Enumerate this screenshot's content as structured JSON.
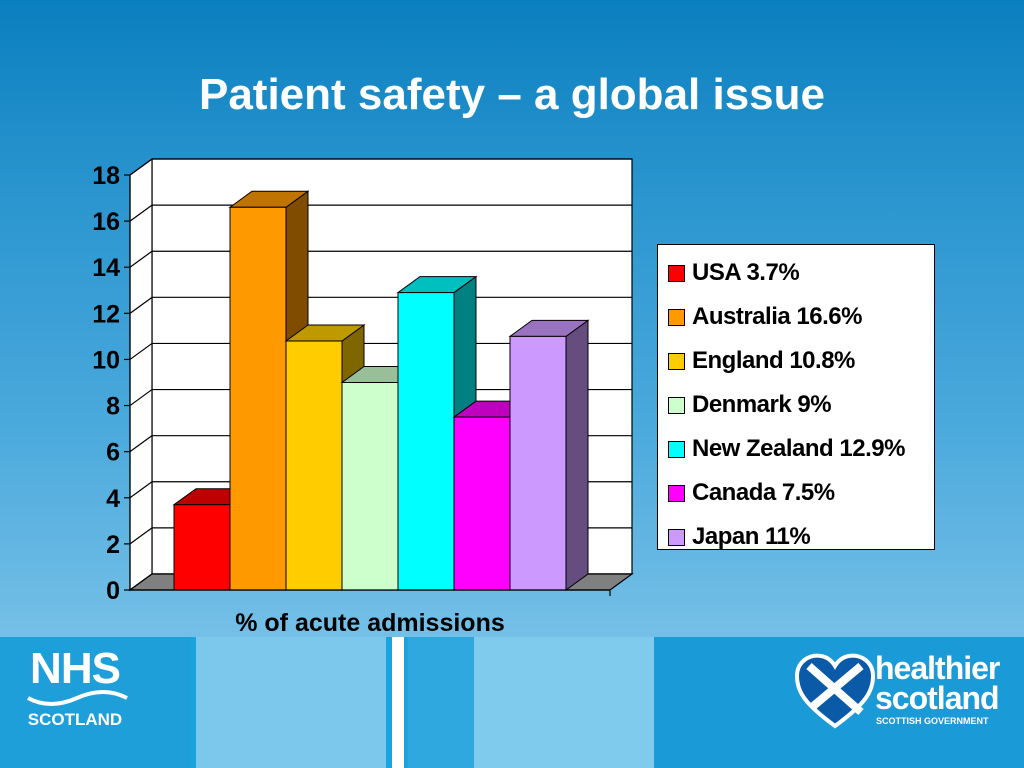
{
  "slide": {
    "title": "Patient safety – a global issue"
  },
  "chart_data": {
    "type": "bar",
    "xlabel": "% of acute admissions",
    "ylim": [
      0,
      18
    ],
    "y_ticks": [
      0,
      2,
      4,
      6,
      8,
      10,
      12,
      14,
      16,
      18
    ],
    "grid": true,
    "legend_position": "right",
    "series": [
      {
        "name": "USA 3.7%",
        "value": 3.7,
        "color": "#ff0000"
      },
      {
        "name": "Australia 16.6%",
        "value": 16.6,
        "color": "#ff9900"
      },
      {
        "name": "England 10.8%",
        "value": 10.8,
        "color": "#ffcc00"
      },
      {
        "name": "Denmark 9%",
        "value": 9,
        "color": "#ccffcc"
      },
      {
        "name": "New Zealand 12.9%",
        "value": 12.9,
        "color": "#00ffff"
      },
      {
        "name": "Canada 7.5%",
        "value": 7.5,
        "color": "#ff00ff"
      },
      {
        "name": "Japan 11%",
        "value": 11,
        "color": "#cc99ff"
      }
    ]
  },
  "footer": {
    "nhs_logo_text": "NHS",
    "nhs_logo_subtext": "SCOTLAND",
    "healthier_scotland_line1": "healthier",
    "healthier_scotland_line2": "scotland",
    "healthier_scotland_subtext": "SCOTTISH GOVERNMENT"
  }
}
